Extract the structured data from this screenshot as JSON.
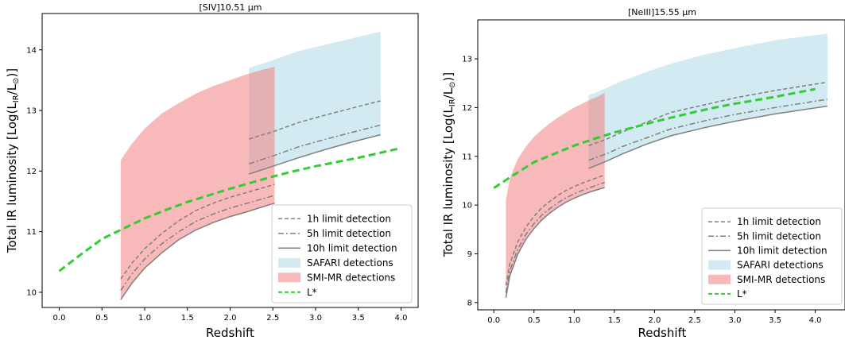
{
  "chart_data": [
    {
      "type": "line",
      "title": "[SIV]10.51 μm",
      "xlabel": "Redshift",
      "ylabel": "Total IR luminosity [Log(L_IR/L_⊙)]",
      "xlim": [
        -0.2,
        4.2
      ],
      "ylim": [
        9.75,
        14.6
      ],
      "xticks": [
        "0.0",
        "0.5",
        "1.0",
        "1.5",
        "2.0",
        "2.5",
        "3.0",
        "3.5",
        "4.0"
      ],
      "yticks": [
        "10",
        "11",
        "12",
        "13",
        "14"
      ],
      "grid": false,
      "legend_position": "lower-right",
      "legend": [
        "1h limit detection",
        "5h limit detection",
        "10h limit detection",
        "SAFARI detections",
        "SMI-MR detections",
        "L*"
      ],
      "colors": {
        "safari": "#add8e6",
        "smi": "#f08080",
        "lstar": "#32cd32",
        "limit": "#808080"
      },
      "bands": [
        {
          "name": "SAFARI detections",
          "x": [
            2.22,
            2.5,
            2.8,
            3.1,
            3.4,
            3.76
          ],
          "y_low": [
            11.95,
            12.08,
            12.22,
            12.35,
            12.47,
            12.6
          ],
          "y_high": [
            13.7,
            13.83,
            13.98,
            14.08,
            14.18,
            14.3
          ]
        },
        {
          "name": "SMI-MR detections",
          "x": [
            0.72,
            0.85,
            1.0,
            1.2,
            1.4,
            1.6,
            1.8,
            2.0,
            2.2,
            2.4,
            2.52
          ],
          "y_low": [
            9.88,
            10.15,
            10.4,
            10.65,
            10.87,
            11.03,
            11.15,
            11.25,
            11.33,
            11.42,
            11.47
          ],
          "y_high": [
            12.18,
            12.45,
            12.7,
            12.95,
            13.12,
            13.28,
            13.4,
            13.5,
            13.6,
            13.68,
            13.72
          ]
        }
      ],
      "series": [
        {
          "name": "1h limit detection",
          "style": "dashed",
          "segments": [
            {
              "x": [
                0.72,
                0.85,
                1.0,
                1.2,
                1.4,
                1.6,
                1.8,
                2.0,
                2.2,
                2.4,
                2.52
              ],
              "y": [
                10.22,
                10.48,
                10.72,
                10.97,
                11.18,
                11.35,
                11.47,
                11.57,
                11.65,
                11.73,
                11.78
              ]
            },
            {
              "x": [
                2.22,
                2.5,
                2.8,
                3.1,
                3.4,
                3.76
              ],
              "y": [
                12.53,
                12.65,
                12.8,
                12.92,
                13.03,
                13.16
              ]
            }
          ]
        },
        {
          "name": "5h limit detection",
          "style": "dashdot",
          "segments": [
            {
              "x": [
                0.72,
                0.85,
                1.0,
                1.2,
                1.4,
                1.6,
                1.8,
                2.0,
                2.2,
                2.4,
                2.52
              ],
              "y": [
                10.03,
                10.3,
                10.55,
                10.8,
                11.0,
                11.17,
                11.29,
                11.39,
                11.47,
                11.55,
                11.6
              ]
            },
            {
              "x": [
                2.22,
                2.5,
                2.8,
                3.1,
                3.4,
                3.76
              ],
              "y": [
                12.12,
                12.25,
                12.4,
                12.52,
                12.63,
                12.76
              ]
            }
          ]
        },
        {
          "name": "10h limit detection",
          "style": "solid",
          "segments": [
            {
              "x": [
                0.72,
                0.85,
                1.0,
                1.2,
                1.4,
                1.6,
                1.8,
                2.0,
                2.2,
                2.4,
                2.52
              ],
              "y": [
                9.88,
                10.15,
                10.4,
                10.65,
                10.87,
                11.03,
                11.15,
                11.25,
                11.33,
                11.42,
                11.47
              ]
            },
            {
              "x": [
                2.22,
                2.5,
                2.8,
                3.1,
                3.4,
                3.76
              ],
              "y": [
                11.95,
                12.08,
                12.22,
                12.35,
                12.47,
                12.6
              ]
            }
          ]
        },
        {
          "name": "L*",
          "style": "dashed-thick",
          "segments": [
            {
              "x": [
                0.0,
                0.25,
                0.5,
                0.75,
                1.0,
                1.25,
                1.5,
                1.75,
                2.0,
                2.25,
                2.5,
                2.75,
                3.0,
                3.25,
                3.5,
                3.75,
                4.0
              ],
              "y": [
                10.35,
                10.62,
                10.88,
                11.05,
                11.22,
                11.36,
                11.49,
                11.6,
                11.71,
                11.81,
                11.91,
                12.0,
                12.08,
                12.15,
                12.22,
                12.3,
                12.38
              ]
            }
          ]
        }
      ]
    },
    {
      "type": "line",
      "title": "[NeIII]15.55 μm",
      "xlabel": "Redshift",
      "ylabel": "Total IR luminosity [Log(L_IR/L_⊙)]",
      "xlim": [
        -0.2,
        4.37
      ],
      "ylim": [
        7.85,
        13.8
      ],
      "xticks": [
        "0.0",
        "0.5",
        "1.0",
        "1.5",
        "2.0",
        "2.5",
        "3.0",
        "3.5",
        "4.0"
      ],
      "yticks": [
        "8",
        "9",
        "10",
        "11",
        "12",
        "13"
      ],
      "grid": false,
      "legend_position": "lower-right",
      "legend": [
        "1h limit detection",
        "5h limit detection",
        "10h limit detection",
        "SAFARI detections",
        "SMI-MR detections",
        "L*"
      ],
      "colors": {
        "safari": "#add8e6",
        "smi": "#f08080",
        "lstar": "#32cd32",
        "limit": "#808080"
      },
      "bands": [
        {
          "name": "SAFARI detections",
          "x": [
            1.18,
            1.4,
            1.6,
            1.9,
            2.2,
            2.6,
            3.0,
            3.5,
            4.15
          ],
          "y_low": [
            10.75,
            10.9,
            11.05,
            11.25,
            11.42,
            11.58,
            11.72,
            11.87,
            12.03
          ],
          "y_high": [
            12.25,
            12.4,
            12.55,
            12.73,
            12.9,
            13.08,
            13.22,
            13.38,
            13.52
          ]
        },
        {
          "name": "SMI-MR detections",
          "x": [
            0.15,
            0.2,
            0.3,
            0.4,
            0.5,
            0.6,
            0.7,
            0.8,
            0.9,
            1.0,
            1.1,
            1.2,
            1.3,
            1.38
          ],
          "y_low": [
            8.1,
            8.55,
            9.0,
            9.3,
            9.52,
            9.7,
            9.84,
            9.96,
            10.06,
            10.14,
            10.21,
            10.27,
            10.32,
            10.36
          ],
          "y_high": [
            10.1,
            10.55,
            10.95,
            11.2,
            11.4,
            11.55,
            11.68,
            11.8,
            11.9,
            12.0,
            12.08,
            12.16,
            12.23,
            12.3
          ]
        }
      ],
      "series": [
        {
          "name": "1h limit detection",
          "style": "dashed",
          "segments": [
            {
              "x": [
                0.15,
                0.2,
                0.3,
                0.4,
                0.5,
                0.6,
                0.7,
                0.8,
                0.9,
                1.0,
                1.1,
                1.2,
                1.3,
                1.38
              ],
              "y": [
                8.35,
                8.8,
                9.25,
                9.55,
                9.77,
                9.95,
                10.08,
                10.2,
                10.3,
                10.38,
                10.45,
                10.51,
                10.57,
                10.62
              ]
            },
            {
              "x": [
                1.18,
                1.4,
                1.6,
                1.9,
                2.2,
                2.6,
                3.0,
                3.5,
                4.15
              ],
              "y": [
                11.22,
                11.35,
                11.5,
                11.7,
                11.9,
                12.05,
                12.2,
                12.35,
                12.52
              ]
            }
          ]
        },
        {
          "name": "5h limit detection",
          "style": "dashdot",
          "segments": [
            {
              "x": [
                0.15,
                0.2,
                0.3,
                0.4,
                0.5,
                0.6,
                0.7,
                0.8,
                0.9,
                1.0,
                1.1,
                1.2,
                1.3,
                1.38
              ],
              "y": [
                8.2,
                8.65,
                9.1,
                9.4,
                9.62,
                9.8,
                9.93,
                10.05,
                10.15,
                10.23,
                10.3,
                10.36,
                10.42,
                10.46
              ]
            },
            {
              "x": [
                1.18,
                1.4,
                1.6,
                1.9,
                2.2,
                2.6,
                3.0,
                3.5,
                4.15
              ],
              "y": [
                10.92,
                11.05,
                11.2,
                11.38,
                11.56,
                11.72,
                11.86,
                12.0,
                12.17
              ]
            }
          ]
        },
        {
          "name": "10h limit detection",
          "style": "solid",
          "segments": [
            {
              "x": [
                0.15,
                0.2,
                0.3,
                0.4,
                0.5,
                0.6,
                0.7,
                0.8,
                0.9,
                1.0,
                1.1,
                1.2,
                1.3,
                1.38
              ],
              "y": [
                8.1,
                8.55,
                9.0,
                9.3,
                9.52,
                9.7,
                9.84,
                9.96,
                10.06,
                10.14,
                10.21,
                10.27,
                10.32,
                10.36
              ]
            },
            {
              "x": [
                1.18,
                1.4,
                1.6,
                1.9,
                2.2,
                2.6,
                3.0,
                3.5,
                4.15
              ],
              "y": [
                10.75,
                10.9,
                11.05,
                11.25,
                11.42,
                11.58,
                11.72,
                11.87,
                12.03
              ]
            }
          ]
        },
        {
          "name": "L*",
          "style": "dashed-thick",
          "segments": [
            {
              "x": [
                0.0,
                0.25,
                0.5,
                0.75,
                1.0,
                1.25,
                1.5,
                1.75,
                2.0,
                2.25,
                2.5,
                2.75,
                3.0,
                3.25,
                3.5,
                3.75,
                4.0
              ],
              "y": [
                10.35,
                10.62,
                10.88,
                11.05,
                11.22,
                11.36,
                11.49,
                11.6,
                11.71,
                11.81,
                11.91,
                12.0,
                12.08,
                12.15,
                12.22,
                12.3,
                12.38
              ]
            }
          ]
        }
      ]
    }
  ]
}
